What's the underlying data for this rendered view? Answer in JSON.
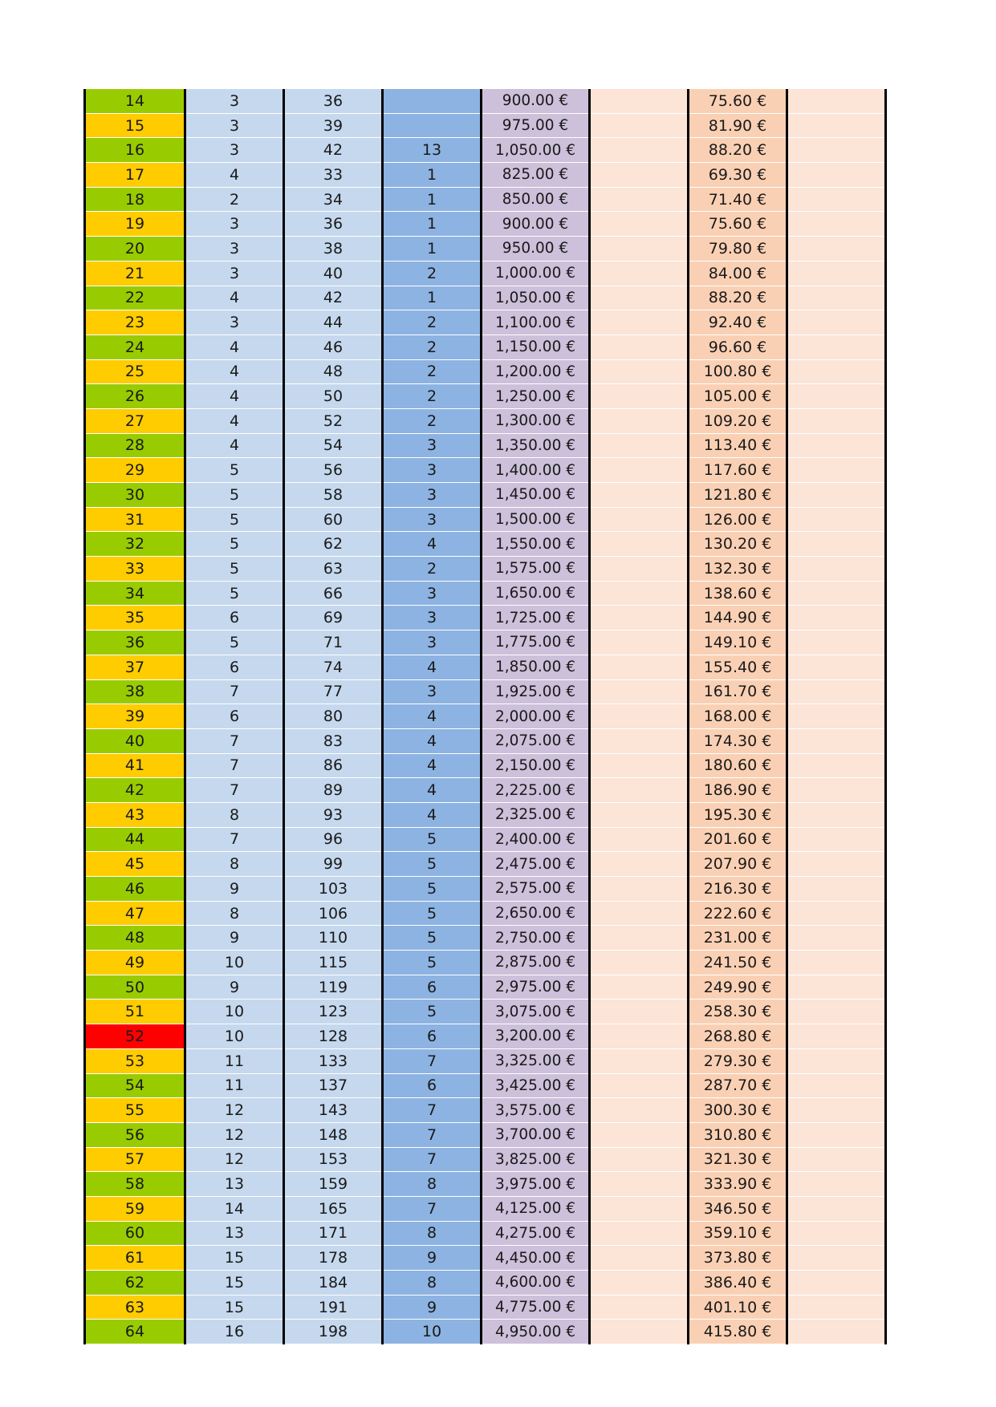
{
  "colors": {
    "level_even": "#99cc00",
    "level_odd": "#ffcc00",
    "level_highlight": "#ff0000"
  },
  "rows": [
    {
      "level": "14",
      "a": "3",
      "b": "36",
      "c": "",
      "price": "900.00 €",
      "e": "",
      "fee": "75.60 €",
      "g": ""
    },
    {
      "level": "15",
      "a": "3",
      "b": "39",
      "c": "",
      "price": "975.00 €",
      "e": "",
      "fee": "81.90 €",
      "g": ""
    },
    {
      "level": "16",
      "a": "3",
      "b": "42",
      "c": "13",
      "price": "1,050.00 €",
      "e": "",
      "fee": "88.20 €",
      "g": ""
    },
    {
      "level": "17",
      "a": "4",
      "b": "33",
      "c": "1",
      "price": "825.00 €",
      "e": "",
      "fee": "69.30 €",
      "g": ""
    },
    {
      "level": "18",
      "a": "2",
      "b": "34",
      "c": "1",
      "price": "850.00 €",
      "e": "",
      "fee": "71.40 €",
      "g": ""
    },
    {
      "level": "19",
      "a": "3",
      "b": "36",
      "c": "1",
      "price": "900.00 €",
      "e": "",
      "fee": "75.60 €",
      "g": ""
    },
    {
      "level": "20",
      "a": "3",
      "b": "38",
      "c": "1",
      "price": "950.00 €",
      "e": "",
      "fee": "79.80 €",
      "g": ""
    },
    {
      "level": "21",
      "a": "3",
      "b": "40",
      "c": "2",
      "price": "1,000.00 €",
      "e": "",
      "fee": "84.00 €",
      "g": ""
    },
    {
      "level": "22",
      "a": "4",
      "b": "42",
      "c": "1",
      "price": "1,050.00 €",
      "e": "",
      "fee": "88.20 €",
      "g": ""
    },
    {
      "level": "23",
      "a": "3",
      "b": "44",
      "c": "2",
      "price": "1,100.00 €",
      "e": "",
      "fee": "92.40 €",
      "g": ""
    },
    {
      "level": "24",
      "a": "4",
      "b": "46",
      "c": "2",
      "price": "1,150.00 €",
      "e": "",
      "fee": "96.60 €",
      "g": ""
    },
    {
      "level": "25",
      "a": "4",
      "b": "48",
      "c": "2",
      "price": "1,200.00 €",
      "e": "",
      "fee": "100.80 €",
      "g": ""
    },
    {
      "level": "26",
      "a": "4",
      "b": "50",
      "c": "2",
      "price": "1,250.00 €",
      "e": "",
      "fee": "105.00 €",
      "g": ""
    },
    {
      "level": "27",
      "a": "4",
      "b": "52",
      "c": "2",
      "price": "1,300.00 €",
      "e": "",
      "fee": "109.20 €",
      "g": ""
    },
    {
      "level": "28",
      "a": "4",
      "b": "54",
      "c": "3",
      "price": "1,350.00 €",
      "e": "",
      "fee": "113.40 €",
      "g": ""
    },
    {
      "level": "29",
      "a": "5",
      "b": "56",
      "c": "3",
      "price": "1,400.00 €",
      "e": "",
      "fee": "117.60 €",
      "g": ""
    },
    {
      "level": "30",
      "a": "5",
      "b": "58",
      "c": "3",
      "price": "1,450.00 €",
      "e": "",
      "fee": "121.80 €",
      "g": ""
    },
    {
      "level": "31",
      "a": "5",
      "b": "60",
      "c": "3",
      "price": "1,500.00 €",
      "e": "",
      "fee": "126.00 €",
      "g": ""
    },
    {
      "level": "32",
      "a": "5",
      "b": "62",
      "c": "4",
      "price": "1,550.00 €",
      "e": "",
      "fee": "130.20 €",
      "g": ""
    },
    {
      "level": "33",
      "a": "5",
      "b": "63",
      "c": "2",
      "price": "1,575.00 €",
      "e": "",
      "fee": "132.30 €",
      "g": ""
    },
    {
      "level": "34",
      "a": "5",
      "b": "66",
      "c": "3",
      "price": "1,650.00 €",
      "e": "",
      "fee": "138.60 €",
      "g": ""
    },
    {
      "level": "35",
      "a": "6",
      "b": "69",
      "c": "3",
      "price": "1,725.00 €",
      "e": "",
      "fee": "144.90 €",
      "g": ""
    },
    {
      "level": "36",
      "a": "5",
      "b": "71",
      "c": "3",
      "price": "1,775.00 €",
      "e": "",
      "fee": "149.10 €",
      "g": ""
    },
    {
      "level": "37",
      "a": "6",
      "b": "74",
      "c": "4",
      "price": "1,850.00 €",
      "e": "",
      "fee": "155.40 €",
      "g": ""
    },
    {
      "level": "38",
      "a": "7",
      "b": "77",
      "c": "3",
      "price": "1,925.00 €",
      "e": "",
      "fee": "161.70 €",
      "g": ""
    },
    {
      "level": "39",
      "a": "6",
      "b": "80",
      "c": "4",
      "price": "2,000.00 €",
      "e": "",
      "fee": "168.00 €",
      "g": ""
    },
    {
      "level": "40",
      "a": "7",
      "b": "83",
      "c": "4",
      "price": "2,075.00 €",
      "e": "",
      "fee": "174.30 €",
      "g": ""
    },
    {
      "level": "41",
      "a": "7",
      "b": "86",
      "c": "4",
      "price": "2,150.00 €",
      "e": "",
      "fee": "180.60 €",
      "g": ""
    },
    {
      "level": "42",
      "a": "7",
      "b": "89",
      "c": "4",
      "price": "2,225.00 €",
      "e": "",
      "fee": "186.90 €",
      "g": ""
    },
    {
      "level": "43",
      "a": "8",
      "b": "93",
      "c": "4",
      "price": "2,325.00 €",
      "e": "",
      "fee": "195.30 €",
      "g": ""
    },
    {
      "level": "44",
      "a": "7",
      "b": "96",
      "c": "5",
      "price": "2,400.00 €",
      "e": "",
      "fee": "201.60 €",
      "g": ""
    },
    {
      "level": "45",
      "a": "8",
      "b": "99",
      "c": "5",
      "price": "2,475.00 €",
      "e": "",
      "fee": "207.90 €",
      "g": ""
    },
    {
      "level": "46",
      "a": "9",
      "b": "103",
      "c": "5",
      "price": "2,575.00 €",
      "e": "",
      "fee": "216.30 €",
      "g": ""
    },
    {
      "level": "47",
      "a": "8",
      "b": "106",
      "c": "5",
      "price": "2,650.00 €",
      "e": "",
      "fee": "222.60 €",
      "g": ""
    },
    {
      "level": "48",
      "a": "9",
      "b": "110",
      "c": "5",
      "price": "2,750.00 €",
      "e": "",
      "fee": "231.00 €",
      "g": ""
    },
    {
      "level": "49",
      "a": "10",
      "b": "115",
      "c": "5",
      "price": "2,875.00 €",
      "e": "",
      "fee": "241.50 €",
      "g": ""
    },
    {
      "level": "50",
      "a": "9",
      "b": "119",
      "c": "6",
      "price": "2,975.00 €",
      "e": "",
      "fee": "249.90 €",
      "g": ""
    },
    {
      "level": "51",
      "a": "10",
      "b": "123",
      "c": "5",
      "price": "3,075.00 €",
      "e": "",
      "fee": "258.30 €",
      "g": ""
    },
    {
      "level": "52",
      "a": "10",
      "b": "128",
      "c": "6",
      "price": "3,200.00 €",
      "e": "",
      "fee": "268.80 €",
      "g": "",
      "highlight": true
    },
    {
      "level": "53",
      "a": "11",
      "b": "133",
      "c": "7",
      "price": "3,325.00 €",
      "e": "",
      "fee": "279.30 €",
      "g": ""
    },
    {
      "level": "54",
      "a": "11",
      "b": "137",
      "c": "6",
      "price": "3,425.00 €",
      "e": "",
      "fee": "287.70 €",
      "g": ""
    },
    {
      "level": "55",
      "a": "12",
      "b": "143",
      "c": "7",
      "price": "3,575.00 €",
      "e": "",
      "fee": "300.30 €",
      "g": ""
    },
    {
      "level": "56",
      "a": "12",
      "b": "148",
      "c": "7",
      "price": "3,700.00 €",
      "e": "",
      "fee": "310.80 €",
      "g": ""
    },
    {
      "level": "57",
      "a": "12",
      "b": "153",
      "c": "7",
      "price": "3,825.00 €",
      "e": "",
      "fee": "321.30 €",
      "g": ""
    },
    {
      "level": "58",
      "a": "13",
      "b": "159",
      "c": "8",
      "price": "3,975.00 €",
      "e": "",
      "fee": "333.90 €",
      "g": ""
    },
    {
      "level": "59",
      "a": "14",
      "b": "165",
      "c": "7",
      "price": "4,125.00 €",
      "e": "",
      "fee": "346.50 €",
      "g": ""
    },
    {
      "level": "60",
      "a": "13",
      "b": "171",
      "c": "8",
      "price": "4,275.00 €",
      "e": "",
      "fee": "359.10 €",
      "g": ""
    },
    {
      "level": "61",
      "a": "15",
      "b": "178",
      "c": "9",
      "price": "4,450.00 €",
      "e": "",
      "fee": "373.80 €",
      "g": ""
    },
    {
      "level": "62",
      "a": "15",
      "b": "184",
      "c": "8",
      "price": "4,600.00 €",
      "e": "",
      "fee": "386.40 €",
      "g": ""
    },
    {
      "level": "63",
      "a": "15",
      "b": "191",
      "c": "9",
      "price": "4,775.00 €",
      "e": "",
      "fee": "401.10 €",
      "g": ""
    },
    {
      "level": "64",
      "a": "16",
      "b": "198",
      "c": "10",
      "price": "4,950.00 €",
      "e": "",
      "fee": "415.80 €",
      "g": ""
    }
  ]
}
